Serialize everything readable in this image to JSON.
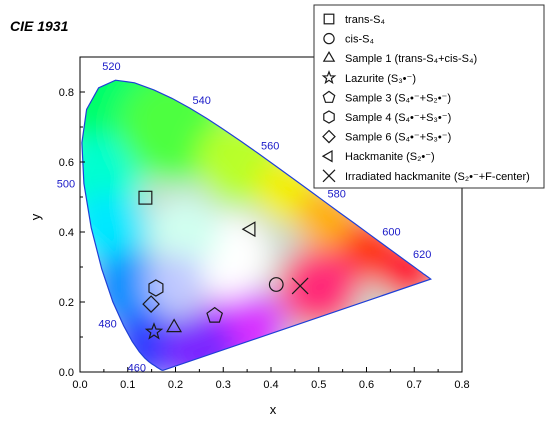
{
  "chart_data": {
    "type": "scatter",
    "title": "CIE 1931",
    "xlabel": "x",
    "ylabel": "y",
    "xlim": [
      0.0,
      0.8
    ],
    "ylim": [
      0.0,
      0.9
    ],
    "xticks": [
      "0.0",
      "0.1",
      "0.2",
      "0.3",
      "0.4",
      "0.5",
      "0.6",
      "0.7",
      "0.8"
    ],
    "yticks": [
      "0.0",
      "0.2",
      "0.4",
      "0.6",
      "0.8"
    ],
    "grid": false,
    "legend_position": "top-right",
    "spectral_locus": [
      [
        0.1741,
        0.005
      ],
      [
        0.173,
        0.0048
      ],
      [
        0.1721,
        0.0048
      ],
      [
        0.1703,
        0.0058
      ],
      [
        0.1666,
        0.0089
      ],
      [
        0.1611,
        0.0138
      ],
      [
        0.1566,
        0.0177
      ],
      [
        0.151,
        0.0227
      ],
      [
        0.144,
        0.0297
      ],
      [
        0.1355,
        0.0399
      ],
      [
        0.1241,
        0.0578
      ],
      [
        0.1096,
        0.0868
      ],
      [
        0.0913,
        0.1327
      ],
      [
        0.0687,
        0.2007
      ],
      [
        0.0454,
        0.295
      ],
      [
        0.0235,
        0.4127
      ],
      [
        0.0082,
        0.5384
      ],
      [
        0.0039,
        0.6548
      ],
      [
        0.0139,
        0.7502
      ],
      [
        0.0389,
        0.812
      ],
      [
        0.0743,
        0.8338
      ],
      [
        0.1142,
        0.8262
      ],
      [
        0.1547,
        0.8059
      ],
      [
        0.1929,
        0.7816
      ],
      [
        0.2296,
        0.7543
      ],
      [
        0.2658,
        0.7243
      ],
      [
        0.3016,
        0.6923
      ],
      [
        0.3373,
        0.6589
      ],
      [
        0.3731,
        0.6245
      ],
      [
        0.4087,
        0.5896
      ],
      [
        0.4441,
        0.5547
      ],
      [
        0.4788,
        0.5202
      ],
      [
        0.5125,
        0.4866
      ],
      [
        0.5448,
        0.4544
      ],
      [
        0.5752,
        0.4242
      ],
      [
        0.6029,
        0.3965
      ],
      [
        0.627,
        0.3725
      ],
      [
        0.6482,
        0.3514
      ],
      [
        0.6658,
        0.334
      ],
      [
        0.6801,
        0.3197
      ],
      [
        0.6915,
        0.3083
      ],
      [
        0.7006,
        0.2993
      ],
      [
        0.7079,
        0.292
      ],
      [
        0.714,
        0.2859
      ],
      [
        0.719,
        0.2809
      ],
      [
        0.723,
        0.277
      ],
      [
        0.726,
        0.274
      ],
      [
        0.7283,
        0.2717
      ],
      [
        0.73,
        0.27
      ],
      [
        0.7311,
        0.2689
      ],
      [
        0.732,
        0.268
      ],
      [
        0.7327,
        0.2673
      ],
      [
        0.7334,
        0.2666
      ],
      [
        0.734,
        0.266
      ],
      [
        0.7344,
        0.2656
      ],
      [
        0.7347,
        0.2653
      ]
    ],
    "wavelength_labels": [
      {
        "label": "460",
        "x": 0.144,
        "y": 0.0297
      },
      {
        "label": "480",
        "x": 0.0913,
        "y": 0.1327
      },
      {
        "label": "500",
        "x": 0.0082,
        "y": 0.5384
      },
      {
        "label": "520",
        "x": 0.0743,
        "y": 0.8338
      },
      {
        "label": "540",
        "x": 0.2296,
        "y": 0.7543
      },
      {
        "label": "560",
        "x": 0.3731,
        "y": 0.6245
      },
      {
        "label": "580",
        "x": 0.5125,
        "y": 0.4866
      },
      {
        "label": "600",
        "x": 0.627,
        "y": 0.3725
      },
      {
        "label": "620",
        "x": 0.6915,
        "y": 0.3083
      }
    ],
    "series": [
      {
        "name": "trans-S₄",
        "marker": "square",
        "x": 0.137,
        "y": 0.498
      },
      {
        "name": "cis-S₄",
        "marker": "circle",
        "x": 0.411,
        "y": 0.25
      },
      {
        "name": "Sample 1 (trans-S₄+cis-S₄)",
        "marker": "triangle-up",
        "x": 0.197,
        "y": 0.127
      },
      {
        "name": "Lazurite (S₃•⁻)",
        "marker": "star",
        "x": 0.155,
        "y": 0.115
      },
      {
        "name": "Sample 3 (S₄•⁻+S₂•⁻)",
        "marker": "pentagon",
        "x": 0.282,
        "y": 0.161
      },
      {
        "name": "Sample 4 (S₄•⁻+S₃•⁻)",
        "marker": "hexagon",
        "x": 0.159,
        "y": 0.24
      },
      {
        "name": "Sample 6 (S₄•⁻+S₃•⁻)",
        "marker": "diamond",
        "x": 0.149,
        "y": 0.194
      },
      {
        "name": "Hackmanite (S₂•⁻)",
        "marker": "triangle-left",
        "x": 0.358,
        "y": 0.408
      },
      {
        "name": "Irradiated hackmanite (S₂•⁻+F-center)",
        "marker": "x",
        "x": 0.461,
        "y": 0.246
      }
    ],
    "colors": {
      "locus": "#1f3fd6",
      "wavelength_text": "#1a1ac8",
      "marker": "#1a1a1a",
      "axes": "#000000"
    }
  }
}
